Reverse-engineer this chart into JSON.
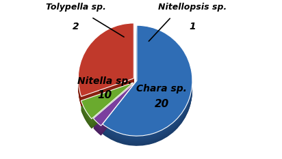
{
  "labels": [
    "Chara sp.",
    "Nitellopsis sp.",
    "Tolypella sp.",
    "Nitella sp."
  ],
  "values": [
    20,
    1,
    2,
    10
  ],
  "colors": [
    "#2f6db5",
    "#7b3f9e",
    "#6aaa2e",
    "#c0392b"
  ],
  "dark_colors": [
    "#1a3d6b",
    "#4a2060",
    "#3d6318",
    "#7a1a0a"
  ],
  "explode": [
    0.0,
    0.04,
    0.07,
    0.07
  ],
  "startangle": 90,
  "background_color": "#ffffff",
  "depth": 0.18,
  "n_layers": 20
}
